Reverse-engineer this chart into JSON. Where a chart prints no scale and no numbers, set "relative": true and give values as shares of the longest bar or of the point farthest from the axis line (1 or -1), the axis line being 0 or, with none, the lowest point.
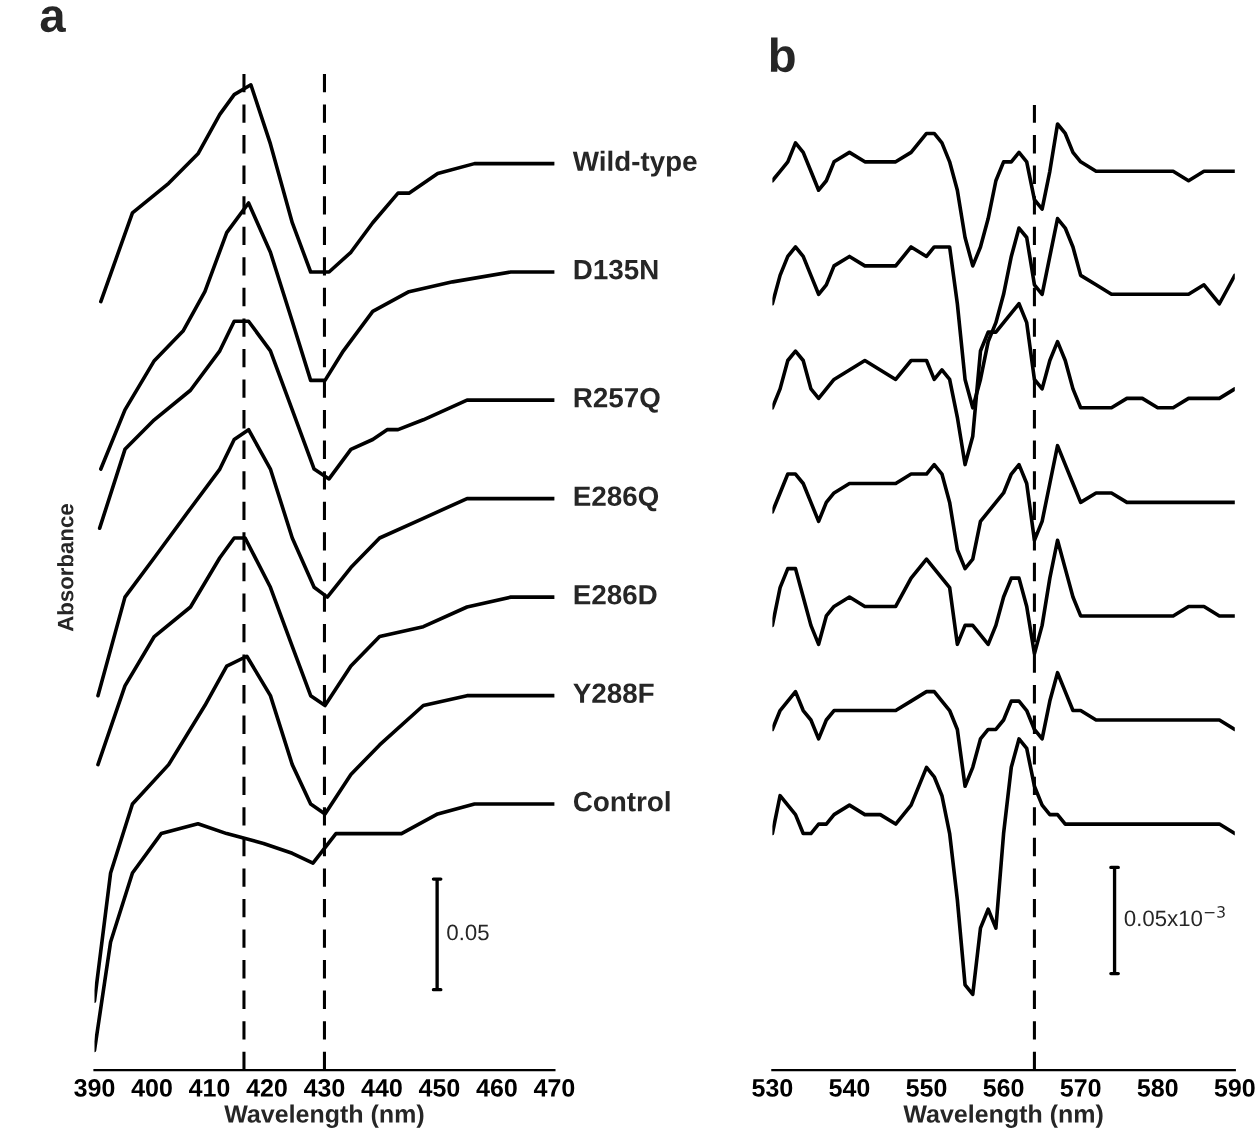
{
  "chart_data": [
    {
      "type": "line",
      "title": "a",
      "xlabel": "Wavelength (nm)",
      "ylabel": "Absorbance",
      "relative": true,
      "xlim": [
        390,
        470
      ],
      "xticks": [
        390,
        400,
        410,
        420,
        430,
        440,
        450,
        460,
        470
      ],
      "ref_lines": [
        {
          "axis": "x",
          "value": 416,
          "line_style": "dashed",
          "color": "#000000"
        },
        {
          "axis": "x",
          "value": 430,
          "line_style": "dashed",
          "color": "#000000"
        }
      ],
      "annotations": [
        "0.05"
      ],
      "series": [
        {
          "name": "Wild-type",
          "color": "#000000",
          "x": [
            391.1,
            396.6,
            402.9,
            408,
            411.8,
            414.3,
            417.2,
            420.6,
            424.4,
            427.6,
            430.8,
            434.6,
            438.4,
            442.8,
            444.7,
            449.7,
            456.1,
            470
          ],
          "values": [
            0.78,
            0.87,
            0.9,
            0.93,
            0.97,
            0.99,
            1.0,
            0.94,
            0.86,
            0.81,
            0.81,
            0.83,
            0.86,
            0.89,
            0.89,
            0.91,
            0.92,
            0.92
          ]
        },
        {
          "name": "D135N",
          "color": "#000000",
          "x": [
            391.1,
            395.3,
            400.4,
            405.4,
            409.2,
            413,
            416.8,
            420.6,
            424.4,
            427.6,
            430.1,
            433.3,
            438.4,
            444.7,
            452.3,
            462.4,
            470
          ],
          "values": [
            0.61,
            0.67,
            0.72,
            0.75,
            0.79,
            0.85,
            0.88,
            0.83,
            0.76,
            0.7,
            0.7,
            0.73,
            0.77,
            0.79,
            0.8,
            0.81,
            0.81
          ]
        },
        {
          "name": "R257Q",
          "color": "#000000",
          "x": [
            390.9,
            395.3,
            400.4,
            406.7,
            411.8,
            414.3,
            416.8,
            420.6,
            424.4,
            428.2,
            430.8,
            434.6,
            438.4,
            440.9,
            442.8,
            447.2,
            454.8,
            462.4,
            470
          ],
          "values": [
            0.55,
            0.63,
            0.66,
            0.69,
            0.73,
            0.76,
            0.76,
            0.73,
            0.67,
            0.61,
            0.6,
            0.63,
            0.64,
            0.65,
            0.65,
            0.66,
            0.68,
            0.68,
            0.68
          ]
        },
        {
          "name": "E286Q",
          "color": "#000000",
          "x": [
            390.6,
            395.3,
            400.4,
            406.7,
            411.8,
            414.3,
            416.8,
            420.6,
            424.4,
            428.2,
            430.5,
            434.6,
            439.6,
            447.2,
            454.8,
            462.4,
            470
          ],
          "values": [
            0.38,
            0.48,
            0.52,
            0.57,
            0.61,
            0.64,
            0.65,
            0.61,
            0.54,
            0.49,
            0.48,
            0.51,
            0.54,
            0.56,
            0.58,
            0.58,
            0.58
          ]
        },
        {
          "name": "E286D",
          "color": "#000000",
          "x": [
            390.6,
            395.3,
            400.4,
            406.7,
            411.8,
            414.3,
            416.2,
            420.6,
            424.4,
            427.6,
            430.1,
            434.6,
            439.6,
            447.2,
            454.8,
            462.4,
            470
          ],
          "values": [
            0.31,
            0.39,
            0.44,
            0.47,
            0.52,
            0.54,
            0.54,
            0.49,
            0.43,
            0.38,
            0.37,
            0.41,
            0.44,
            0.45,
            0.47,
            0.48,
            0.48
          ]
        },
        {
          "name": "Y288F",
          "color": "#000000",
          "x": [
            390,
            392.8,
            396.6,
            402.9,
            409.2,
            413,
            416.5,
            420.6,
            424.4,
            427.6,
            430.1,
            434.6,
            439.6,
            447.2,
            454.8,
            462.4,
            470
          ],
          "values": [
            0.07,
            0.2,
            0.27,
            0.31,
            0.37,
            0.41,
            0.42,
            0.38,
            0.31,
            0.27,
            0.26,
            0.3,
            0.33,
            0.37,
            0.38,
            0.38,
            0.38
          ]
        },
        {
          "name": "Control",
          "color": "#000000",
          "x": [
            390,
            392.8,
            396.6,
            401.6,
            408,
            413,
            419.4,
            424.4,
            428,
            432,
            437.1,
            443.4,
            449.7,
            456.1,
            462.4,
            470
          ],
          "values": [
            0.02,
            0.13,
            0.2,
            0.24,
            0.25,
            0.24,
            0.23,
            0.22,
            0.21,
            0.24,
            0.24,
            0.24,
            0.26,
            0.27,
            0.27,
            0.27
          ]
        }
      ]
    },
    {
      "type": "line",
      "title": "b",
      "xlabel": "Wavelength (nm)",
      "relative": true,
      "xlim": [
        530,
        590
      ],
      "xticks": [
        530,
        540,
        550,
        560,
        570,
        580,
        590
      ],
      "ref_lines": [
        {
          "axis": "x",
          "value": 564,
          "line_style": "dashed",
          "color": "#000000"
        }
      ],
      "annotations": [
        "0.05x10$^{−3}$"
      ],
      "x": [
        530,
        531,
        532,
        533,
        534,
        535,
        536,
        537,
        538,
        540,
        542,
        544,
        546,
        548,
        550,
        551,
        552,
        553,
        554,
        555,
        556,
        557,
        558,
        559,
        560,
        561,
        562,
        563,
        564,
        565,
        566,
        567,
        568,
        569,
        570,
        572,
        574,
        576,
        578,
        580,
        582,
        584,
        586,
        588,
        590
      ],
      "series": [
        {
          "color": "#000000",
          "values": [
            0.94,
            0.95,
            0.96,
            0.98,
            0.97,
            0.95,
            0.93,
            0.94,
            0.96,
            0.97,
            0.96,
            0.96,
            0.96,
            0.97,
            0.99,
            0.99,
            0.98,
            0.96,
            0.93,
            0.88,
            0.85,
            0.87,
            0.9,
            0.94,
            0.96,
            0.96,
            0.97,
            0.96,
            0.92,
            0.91,
            0.95,
            1.0,
            0.99,
            0.97,
            0.96,
            0.95,
            0.95,
            0.95,
            0.95,
            0.95,
            0.95,
            0.94,
            0.95,
            0.95,
            0.95
          ]
        },
        {
          "color": "#000000",
          "values": [
            0.81,
            0.84,
            0.86,
            0.87,
            0.86,
            0.84,
            0.82,
            0.83,
            0.85,
            0.86,
            0.85,
            0.85,
            0.85,
            0.87,
            0.86,
            0.87,
            0.87,
            0.87,
            0.81,
            0.73,
            0.7,
            0.73,
            0.77,
            0.79,
            0.82,
            0.86,
            0.89,
            0.88,
            0.83,
            0.82,
            0.86,
            0.9,
            0.89,
            0.87,
            0.84,
            0.83,
            0.82,
            0.82,
            0.82,
            0.82,
            0.82,
            0.82,
            0.83,
            0.81,
            0.84
          ]
        },
        {
          "color": "#000000",
          "values": [
            0.7,
            0.72,
            0.75,
            0.76,
            0.75,
            0.72,
            0.71,
            0.72,
            0.73,
            0.74,
            0.75,
            0.74,
            0.73,
            0.75,
            0.75,
            0.73,
            0.74,
            0.73,
            0.69,
            0.64,
            0.67,
            0.76,
            0.78,
            0.78,
            0.79,
            0.8,
            0.81,
            0.79,
            0.73,
            0.72,
            0.75,
            0.77,
            0.75,
            0.72,
            0.7,
            0.7,
            0.7,
            0.71,
            0.71,
            0.7,
            0.7,
            0.71,
            0.71,
            0.71,
            0.72
          ]
        },
        {
          "color": "#000000",
          "values": [
            0.59,
            0.61,
            0.63,
            0.63,
            0.62,
            0.6,
            0.58,
            0.6,
            0.61,
            0.62,
            0.62,
            0.62,
            0.62,
            0.63,
            0.63,
            0.64,
            0.63,
            0.6,
            0.55,
            0.53,
            0.54,
            0.58,
            0.59,
            0.6,
            0.61,
            0.63,
            0.64,
            0.62,
            0.56,
            0.58,
            0.62,
            0.66,
            0.64,
            0.62,
            0.6,
            0.61,
            0.61,
            0.6,
            0.6,
            0.6,
            0.6,
            0.6,
            0.6,
            0.6,
            0.6
          ]
        },
        {
          "color": "#000000",
          "values": [
            0.47,
            0.51,
            0.53,
            0.53,
            0.5,
            0.47,
            0.45,
            0.48,
            0.49,
            0.5,
            0.49,
            0.49,
            0.49,
            0.52,
            0.54,
            0.53,
            0.52,
            0.51,
            0.45,
            0.47,
            0.47,
            0.46,
            0.45,
            0.47,
            0.5,
            0.52,
            0.52,
            0.49,
            0.44,
            0.47,
            0.52,
            0.56,
            0.53,
            0.5,
            0.48,
            0.48,
            0.48,
            0.48,
            0.48,
            0.48,
            0.48,
            0.49,
            0.49,
            0.48,
            0.48
          ]
        },
        {
          "color": "#000000",
          "values": [
            0.36,
            0.38,
            0.39,
            0.4,
            0.38,
            0.37,
            0.35,
            0.37,
            0.38,
            0.38,
            0.38,
            0.38,
            0.38,
            0.39,
            0.4,
            0.4,
            0.39,
            0.38,
            0.36,
            0.3,
            0.32,
            0.35,
            0.36,
            0.36,
            0.37,
            0.39,
            0.39,
            0.38,
            0.36,
            0.35,
            0.39,
            0.42,
            0.4,
            0.38,
            0.38,
            0.37,
            0.37,
            0.37,
            0.37,
            0.37,
            0.37,
            0.37,
            0.37,
            0.37,
            0.36
          ]
        },
        {
          "color": "#000000",
          "values": [
            0.25,
            0.29,
            0.28,
            0.27,
            0.25,
            0.25,
            0.26,
            0.26,
            0.27,
            0.28,
            0.27,
            0.27,
            0.26,
            0.28,
            0.32,
            0.31,
            0.29,
            0.25,
            0.18,
            0.09,
            0.08,
            0.15,
            0.17,
            0.15,
            0.25,
            0.32,
            0.35,
            0.34,
            0.3,
            0.28,
            0.27,
            0.27,
            0.26,
            0.26,
            0.26,
            0.26,
            0.26,
            0.26,
            0.26,
            0.26,
            0.26,
            0.26,
            0.26,
            0.26,
            0.25
          ]
        }
      ]
    }
  ]
}
